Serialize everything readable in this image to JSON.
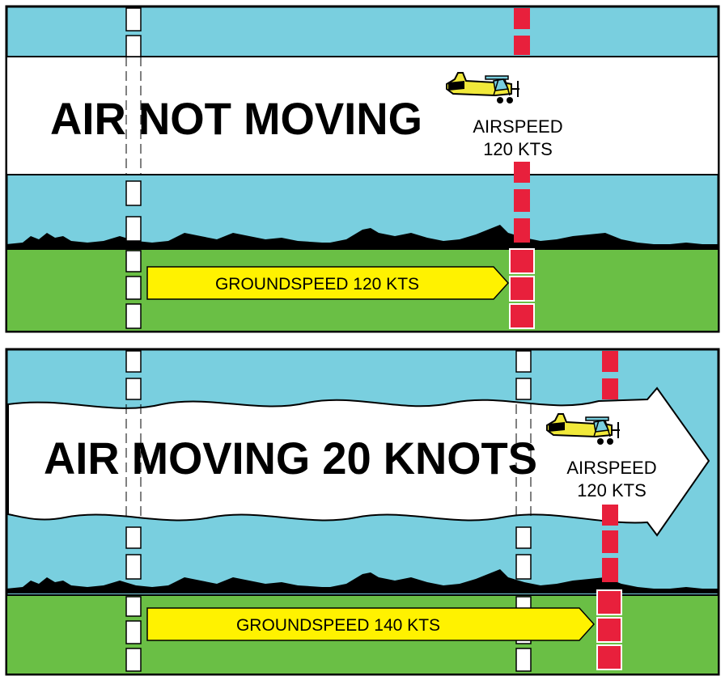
{
  "colors": {
    "sky": "#79cfdf",
    "grass": "#6abf45",
    "arrow": "#fff200",
    "marker": "#e8203c",
    "plane": "#f1e93a",
    "border": "#000000"
  },
  "panels": [
    {
      "title": "AIR NOT MOVING",
      "airspeed_line1": "AIRSPEED",
      "airspeed_line2": "120 KTS",
      "groundspeed": "GROUNDSPEED 120 KTS"
    },
    {
      "title": "AIR MOVING 20 KNOTS",
      "airspeed_line1": "AIRSPEED",
      "airspeed_line2": "120 KTS",
      "groundspeed": "GROUNDSPEED 140 KTS"
    }
  ],
  "icons": {
    "airplane": "airplane-icon",
    "wind_arrow": "wind-arrow-icon",
    "tree_line": "tree-line-icon"
  }
}
